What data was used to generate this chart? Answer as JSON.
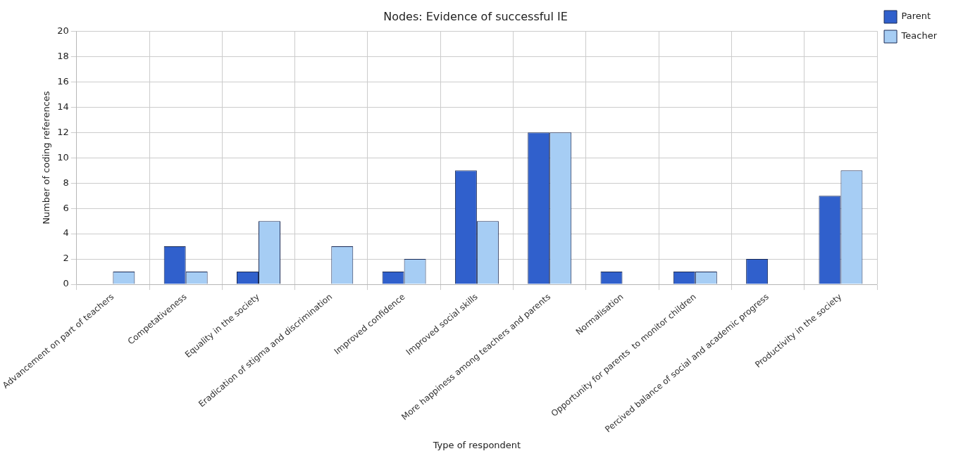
{
  "chart_data": {
    "type": "bar",
    "title": "Nodes: Evidence of successful IE",
    "xlabel": "Type of respondent",
    "ylabel": "Number of coding references",
    "categories": [
      "Advancement on part of teachers",
      "Competativeness",
      "Equality in the society",
      "Eradication of stigma and discrimination",
      "Improved confidence",
      "Improved social skills",
      "More happiness among teachers and parents",
      "Normalisation",
      "Opportunity for parents  to monitor children",
      "Percived balance of social and academic progress",
      "Productivity in the society"
    ],
    "series": [
      {
        "name": "Parent",
        "color": "#3060cc",
        "values": [
          0,
          3,
          1,
          0,
          1,
          9,
          12,
          1,
          1,
          2,
          7
        ]
      },
      {
        "name": "Teacher",
        "color": "#a6cdf4",
        "values": [
          1,
          1,
          5,
          3,
          2,
          5,
          12,
          0,
          1,
          0,
          9
        ]
      }
    ],
    "ylim": [
      0,
      20
    ],
    "yticks": [
      0,
      2,
      4,
      6,
      8,
      10,
      12,
      14,
      16,
      18,
      20
    ],
    "grid": true,
    "legend": "top right"
  }
}
